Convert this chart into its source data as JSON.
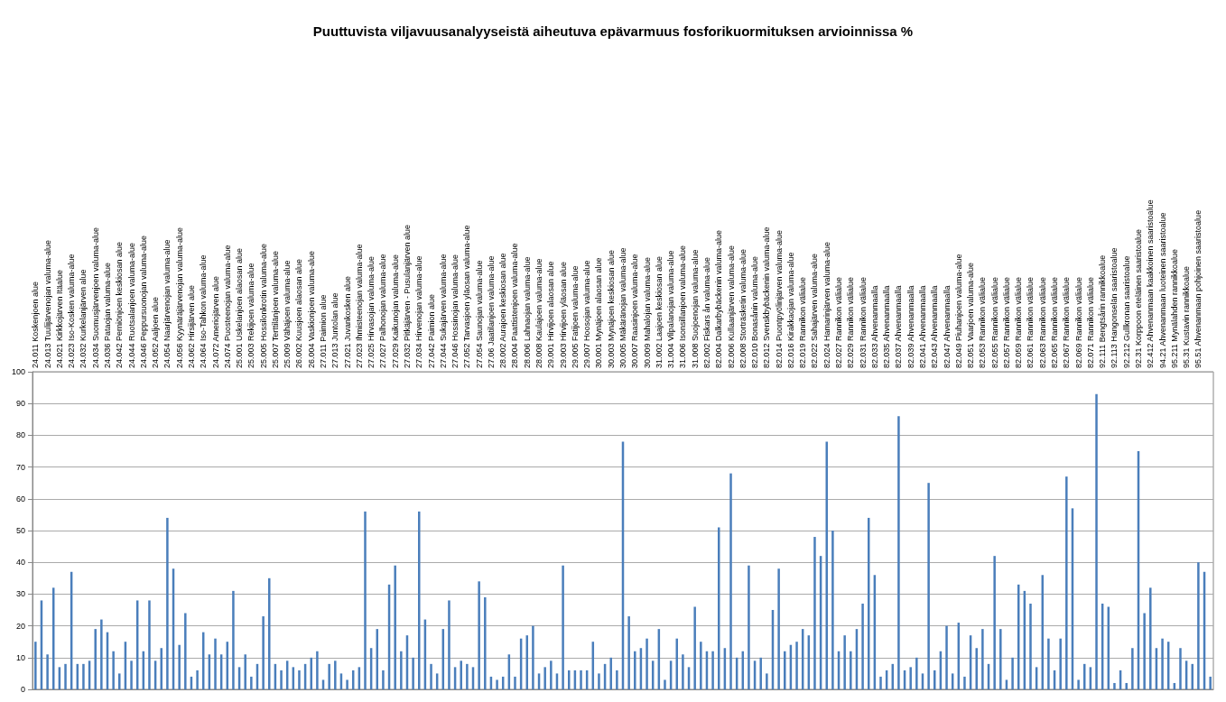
{
  "chart_data": {
    "type": "bar",
    "title": "Puuttuvista viljavuusanalyyseistä aiheutuva epävarmuus fosforikuormituksen arvioinnissa %",
    "categories": [
      "24.011 Koskenjoen alue",
      null,
      "24.013 Tuulijärvenojan valuma-alue",
      null,
      "24.021 Kirkkojärven Itäalue",
      null,
      "24.023 Iso-Kosken valuma-alue",
      null,
      "24.032 Kurkelanjärven alue",
      null,
      "24.034 Suomusjärvenjoen valuma-alue",
      null,
      "24.036 Pataojan valuma-alue",
      null,
      "24.042 Perniönjoen keskiosan alue",
      null,
      "24.044 Ruotsalanjoen valuma-alue",
      null,
      "24.046 Peppursuonojan valuma-alue",
      null,
      "24.052 Aaljoen alue",
      null,
      "24.054 Naarjärvenojan valuma-alue",
      null,
      "24.056 Kyynäräjärvenojan valuma-alue",
      null,
      "24.062 Hirsijärven alue",
      null,
      "24.064 Iso-Tahkon valuma-alue",
      null,
      "24.072 Ameriojärven alue",
      null,
      "24.074 Puosteenojan valuma-alue",
      null,
      "25.001 Uskelanjoen alaosan alue",
      null,
      "25.003 Rekijoen valuma-alue",
      null,
      "25.005 Hossilonkrotin valuma-alue",
      null,
      "25.007 Terttilänjoen valuma-alue",
      null,
      "25.009 Vähäjoen valuma-alue",
      null,
      "26.002 Kuusjoen alaosan alue",
      null,
      "26.004 Vaskionjoen valuma-alue",
      null,
      "27.011 Paimion alue",
      null,
      "27.013 Juntolan alue",
      null,
      "27.021 Juvankosken alue",
      null,
      "27.023 Ihmisteenojan valuma-alue",
      null,
      "27.025 Hirvasojan valuma-alue",
      null,
      "27.027 Palhonojan valuma-alue",
      null,
      "27.029 Kaikunojan valuma-alue",
      null,
      "27.032 Pitkäjärven - Pusulanjärven alue",
      null,
      "27.034 Hirvenojan valuma-alue",
      null,
      "27.042 Paimion alue",
      null,
      "27.044 Sukajärven valuma-alue",
      null,
      "27.046 Hossinojan valuma-alue",
      null,
      "27.052 Tarvasjoen yläosan valuma-alue",
      null,
      "27.054 Saunojan valuma-alue",
      null,
      "27.06 Jaatilanjoen valuma-alue",
      null,
      "28.002 Aurajoen keskiosan alue",
      null,
      "28.004 Paattistenjoen valuma-alue",
      null,
      "28.006 Lahnaojan valuma-alue",
      null,
      "28.008 Kaulajoen valuma-alue",
      null,
      "29.001 Hirvijoen alaosan alue",
      null,
      "29.003 Hirvijoen yläosan alue",
      null,
      "29.005 Fatijoen valuma-alue",
      null,
      "29.007 Hoosojan valuma-alue",
      null,
      "30.001 Mynäjoen alaosan alue",
      null,
      "30.003 Mynäjoen keskiosan alue",
      null,
      "30.005 Mäkäränojan valuma-alue",
      null,
      "30.007 Raasinjoen valuma-alue",
      null,
      "30.009 Mahalojan valuma-alue",
      null,
      "31.002 Laajoen keskiosan alue",
      null,
      "31.004 Vilpalanojan valuma-alue",
      null,
      "31.006 Isonsillanjoen valuma-alue",
      null,
      "31.008 Suojoenojan valuma-alue",
      null,
      "82.002 Fiskars ån valuma-alue",
      null,
      "82.004 Dalkarbybäckenin valuma-alue",
      null,
      "82.006 Kullaanjärven valuma-alue",
      null,
      "82.008 Storträsketin valuma-alue",
      null,
      "82.010 Bonasånin valuma-alue",
      null,
      "82.012 Svenskbybäckenin valuma-alue",
      null,
      "82.014 Puontpyölinjärven valuma-alue",
      null,
      "82.016 Kirakkaojan valuma-alue",
      null,
      "82.019 Rannikon välialue",
      null,
      "82.022 Sahajärven valuma-alue",
      null,
      "82.024 Hamarinjärven valuma-alue",
      null,
      "82.027 Rannikon välialue",
      null,
      "82.029 Rannikon välialue",
      null,
      "82.031 Rannikon välialue",
      null,
      "82.033 Ahvenanmaalla",
      null,
      "82.035 Ahvenanmaalla",
      null,
      "82.037 Ahvenanmaalla",
      null,
      "82.039 Ahvenanmaalla",
      null,
      "82.041 Ahvenanmaalla",
      null,
      "82.043 Ahvenanmaalla",
      null,
      "82.047 Ahvenanmaalla",
      null,
      "82.049 Piuhanjoen valuma-alue",
      null,
      "82.051 Vaarjoen valuma-alue",
      null,
      "82.053 Rannikon välialue",
      null,
      "82.055 Rannikon välialue",
      null,
      "82.057 Rannikon välialue",
      null,
      "82.059 Rannikon välialue",
      null,
      "82.061 Rannikon välialue",
      null,
      "82.063 Rannikon välialue",
      null,
      "82.065 Rannikon välialue",
      null,
      "82.067 Rannikon välialue",
      null,
      "82.069 Rannikon välialue",
      null,
      "82.071 Rannikon välialue",
      null,
      "92.111 Bengtsårin rannikkoalue",
      null,
      "92.113 Hangonselän saaristoalue",
      null,
      "92.212 Gullkronan saaristoalue",
      null,
      "92.31 Korppoon eteläinen saaristoalue",
      null,
      "92.412 Ahvenanmaan kaakkoinen saaristoalue",
      null,
      "94.21 Ahvenanmaan luoteinen saaristoalue",
      null,
      "95.211 Mynälahden rannikkoalue",
      null,
      "95.31 Kustavin rannikkoalue",
      null,
      "95.51 Ahvenanmaan pohjoinen saaristoalue",
      null,
      null
    ],
    "values": [
      15,
      28,
      11,
      32,
      7,
      8,
      37,
      8,
      8,
      9,
      19,
      22,
      18,
      12,
      5,
      15,
      9,
      28,
      12,
      28,
      9,
      13,
      54,
      38,
      14,
      24,
      4,
      6,
      18,
      11,
      16,
      11,
      15,
      31,
      7,
      11,
      4,
      8,
      23,
      35,
      8,
      6,
      9,
      7,
      6,
      8,
      10,
      12,
      3,
      8,
      9,
      5,
      3,
      6,
      7,
      56,
      13,
      19,
      6,
      33,
      39,
      12,
      17,
      10,
      56,
      22,
      8,
      5,
      19,
      28,
      7,
      9,
      8,
      7,
      34,
      29,
      4,
      3,
      4,
      11,
      4,
      16,
      17,
      20,
      5,
      7,
      9,
      5,
      39,
      6,
      6,
      6,
      6,
      15,
      5,
      8,
      10,
      6,
      78,
      23,
      12,
      13,
      16,
      9,
      19,
      3,
      9,
      16,
      11,
      7,
      26,
      15,
      12,
      12,
      51,
      13,
      68,
      10,
      12,
      39,
      9,
      10,
      5,
      25,
      38,
      12,
      14,
      15,
      19,
      17,
      48,
      42,
      78,
      50,
      12,
      17,
      12,
      19,
      27,
      54,
      36,
      4,
      6,
      8,
      86,
      6,
      7,
      10,
      5,
      65,
      6,
      12,
      20,
      5,
      21,
      4,
      17,
      13,
      19,
      8,
      42,
      19,
      3,
      10,
      33,
      31,
      27,
      7,
      36,
      16,
      6,
      16,
      67,
      57,
      3,
      8,
      7,
      93,
      27,
      26,
      2,
      6,
      2,
      13,
      75,
      24,
      32,
      13,
      16,
      15,
      2,
      13,
      9,
      8,
      40,
      37,
      4
    ],
    "color": "#4a7ebb",
    "ylim": [
      0,
      100
    ],
    "yticks": [
      0,
      10,
      20,
      30,
      40,
      50,
      60,
      70,
      80,
      90,
      100
    ],
    "grid": true
  }
}
